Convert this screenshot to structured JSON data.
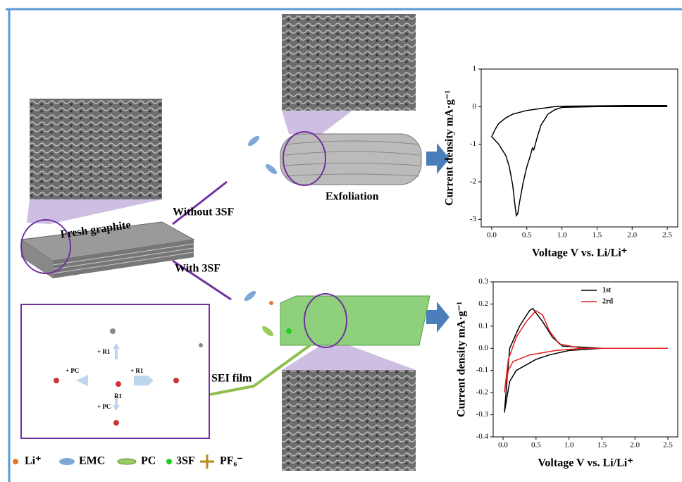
{
  "diagram": {
    "labels": {
      "fresh_graphite": "Fresh graphite",
      "without": "Without 3SF",
      "with": "With 3SF",
      "exfoliation": "Exfoliation",
      "sei": "SEI film"
    },
    "reactions": [
      "+ R1",
      "+ PC",
      "+ R1",
      "R1",
      "+ PC"
    ],
    "legend": [
      "Li⁺",
      "EMC",
      "PC",
      "3SF",
      "PF₆⁻"
    ]
  },
  "chart_data": [
    {
      "type": "line",
      "xlabel": "Voltage V vs. Li/Li⁺",
      "ylabel": "Current density mA·g⁻¹",
      "xlim": [
        -0.15,
        2.65
      ],
      "ylim": [
        -3.2,
        1
      ],
      "xticks": [
        {
          "value": 0,
          "label": "0.0"
        },
        {
          "value": 0.5,
          "label": "0.5"
        },
        {
          "value": 1,
          "label": "1.0"
        },
        {
          "value": 1.5,
          "label": "1.5"
        },
        {
          "value": 2,
          "label": "2.0"
        },
        {
          "value": 2.5,
          "label": "2.5"
        }
      ],
      "yticks": [
        1,
        0,
        -1,
        -2,
        -3
      ],
      "series": [
        {
          "color": "#000000",
          "x": [
            2.5,
            2.0,
            1.5,
            1.0,
            0.9,
            0.8,
            0.7,
            0.65,
            0.6,
            0.58,
            0.55,
            0.5,
            0.45,
            0.4,
            0.37,
            0.35,
            0.33,
            0.3,
            0.25,
            0.2,
            0.1,
            0.0,
            0.05,
            0.1,
            0.2,
            0.3,
            0.5,
            0.7,
            0.9,
            1.0,
            1.5,
            2.0,
            2.5
          ],
          "values": [
            0.0,
            0.0,
            0.0,
            -0.02,
            -0.08,
            -0.2,
            -0.5,
            -0.8,
            -1.15,
            -1.1,
            -1.3,
            -1.6,
            -2.0,
            -2.5,
            -2.85,
            -2.9,
            -2.6,
            -2.1,
            -1.6,
            -1.3,
            -1.0,
            -0.8,
            -0.6,
            -0.45,
            -0.3,
            -0.2,
            -0.1,
            -0.05,
            0.0,
            0.01,
            0.02,
            0.03,
            0.03
          ]
        }
      ]
    },
    {
      "type": "line",
      "xlabel": "Voltage V vs. Li/Li⁺",
      "ylabel": "Current density mA·g⁻¹",
      "xlim": [
        -0.15,
        2.65
      ],
      "ylim": [
        -0.4,
        0.3
      ],
      "xticks": [
        {
          "value": 0,
          "label": "0.0"
        },
        {
          "value": 0.5,
          "label": "0.5"
        },
        {
          "value": 1,
          "label": "1.0"
        },
        {
          "value": 1.5,
          "label": "1.5"
        },
        {
          "value": 2,
          "label": "2.0"
        },
        {
          "value": 2.5,
          "label": "2.5"
        }
      ],
      "yticks": [
        0.3,
        0.2,
        0.1,
        {
          "value": 0,
          "label": "0.0"
        },
        -0.1,
        -0.2,
        -0.3,
        -0.4
      ],
      "series": [
        {
          "name": "1st",
          "color": "#000000",
          "x": [
            2.5,
            1.5,
            1.0,
            0.7,
            0.5,
            0.2,
            0.1,
            0.02,
            0.1,
            0.25,
            0.4,
            0.45,
            0.6,
            0.75,
            0.9,
            1.5,
            2.5
          ],
          "values": [
            0.0,
            0.0,
            -0.01,
            -0.03,
            -0.05,
            -0.1,
            -0.15,
            -0.29,
            0.0,
            0.1,
            0.17,
            0.18,
            0.12,
            0.05,
            0.01,
            0.0,
            0.0
          ]
        },
        {
          "name": "2rd",
          "color": "#e32020",
          "x": [
            2.5,
            1.2,
            0.8,
            0.4,
            0.15,
            0.08,
            0.02,
            0.08,
            0.2,
            0.35,
            0.5,
            0.6,
            0.7,
            0.85,
            1.2,
            2.5
          ],
          "values": [
            0.0,
            0.0,
            -0.01,
            -0.03,
            -0.06,
            -0.1,
            -0.2,
            -0.05,
            0.05,
            0.12,
            0.17,
            0.15,
            0.08,
            0.02,
            0.0,
            0.0
          ]
        }
      ]
    }
  ]
}
